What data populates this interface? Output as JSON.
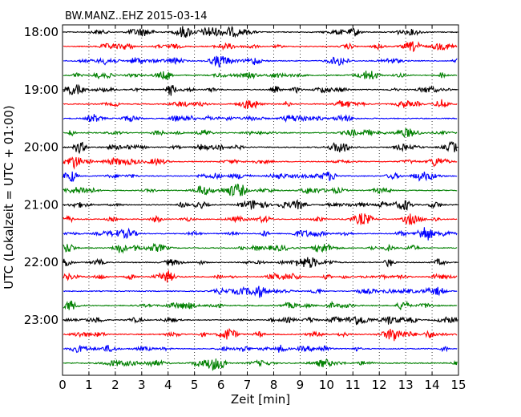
{
  "chart_data": {
    "type": "line",
    "title": "BW.MANZ..EHZ 2015-03-14",
    "xlabel": "Zeit  [min]",
    "ylabel": "UTC (Lokalzeit = UTC + 01:00)",
    "xlim": [
      0,
      15
    ],
    "xticks": [
      "0",
      "1",
      "2",
      "3",
      "4",
      "5",
      "6",
      "7",
      "8",
      "9",
      "10",
      "11",
      "12",
      "13",
      "14",
      "15"
    ],
    "yticks": [
      "18:00",
      "19:00",
      "20:00",
      "21:00",
      "22:00",
      "23:00"
    ],
    "trace_start_times": [
      "18:00",
      "18:15",
      "18:30",
      "18:45",
      "19:00",
      "19:15",
      "19:30",
      "19:45",
      "20:00",
      "20:15",
      "20:30",
      "20:45",
      "21:00",
      "21:15",
      "21:30",
      "21:45",
      "22:00",
      "22:15",
      "22:30",
      "22:45",
      "23:00",
      "23:15",
      "23:30",
      "23:45"
    ],
    "trace_colors": [
      "#000000",
      "#ff0000",
      "#0000ff",
      "#008000"
    ],
    "grid": "vertical dotted at each minute",
    "series": []
  }
}
